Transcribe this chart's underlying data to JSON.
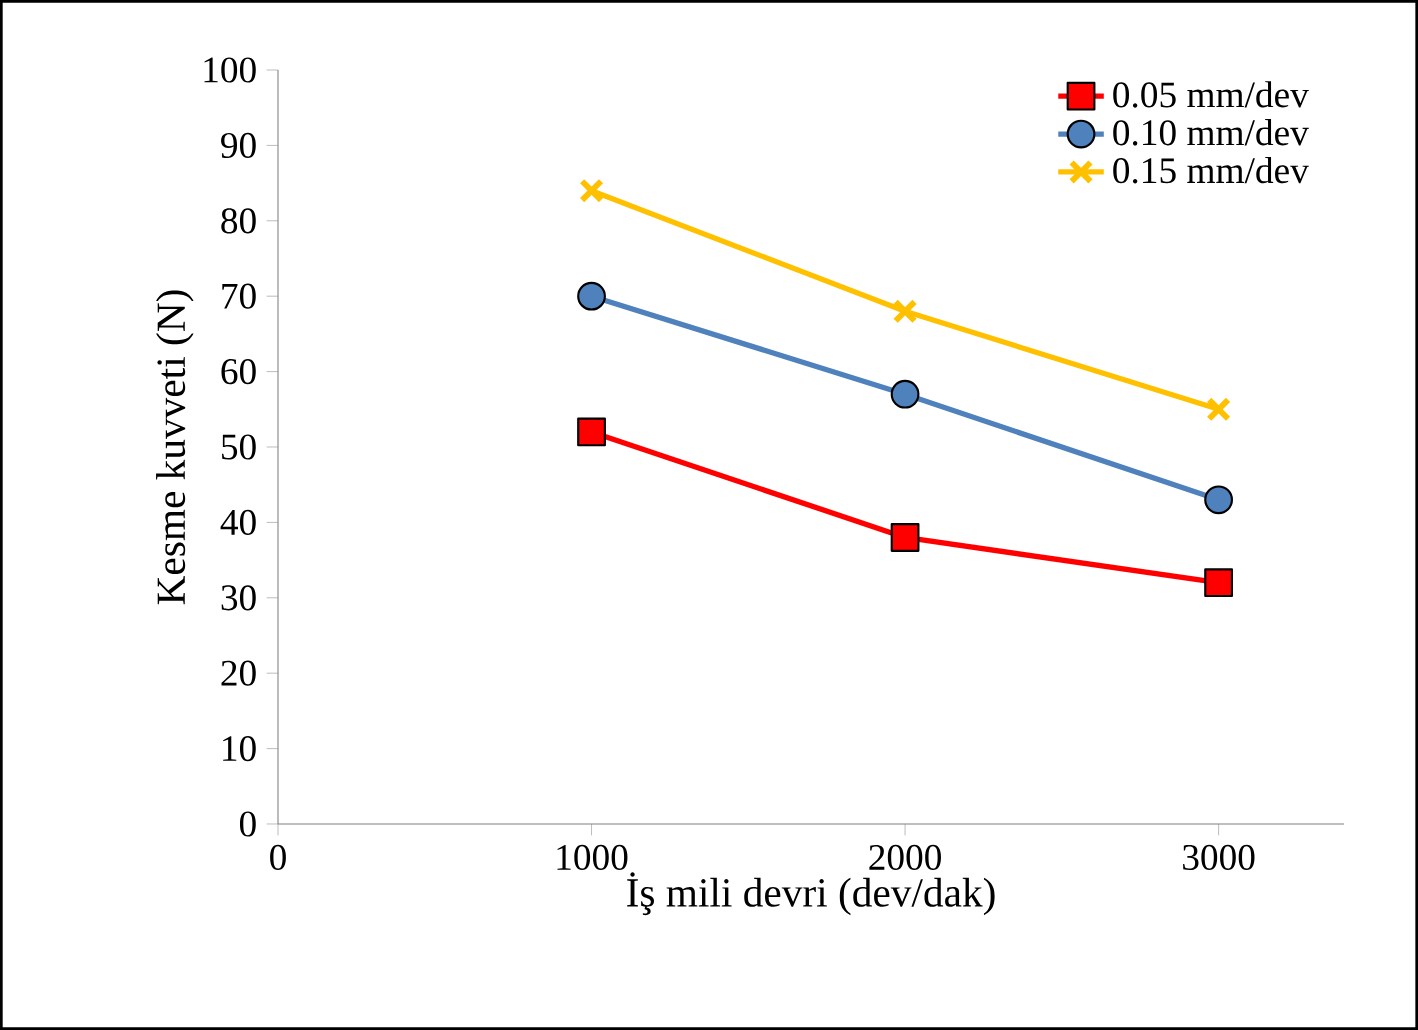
{
  "chart_data": {
    "type": "line",
    "xlabel": "İş mili devri (dev/dak)",
    "ylabel": "Kesme kuvveti (N)",
    "x": [
      1000,
      2000,
      3000
    ],
    "series": [
      {
        "name": "0.05 mm/dev",
        "color": "#ff0000",
        "values": [
          52,
          38,
          32
        ],
        "marker": "square"
      },
      {
        "name": "0.10 mm/dev",
        "color": "#4f81bd",
        "values": [
          70,
          57,
          43
        ],
        "marker": "circle"
      },
      {
        "name": "0.15 mm/dev",
        "color": "#ffc000",
        "values": [
          84,
          68,
          55
        ],
        "marker": "cross"
      }
    ],
    "xlim": [
      0,
      3400
    ],
    "xticks": [
      0,
      1000,
      2000,
      3000
    ],
    "ylim": [
      0,
      100
    ],
    "yticks": [
      0,
      10,
      20,
      30,
      40,
      50,
      60,
      70,
      80,
      90,
      100
    ],
    "grid": false,
    "legend": "top right",
    "line_style": "solid"
  }
}
